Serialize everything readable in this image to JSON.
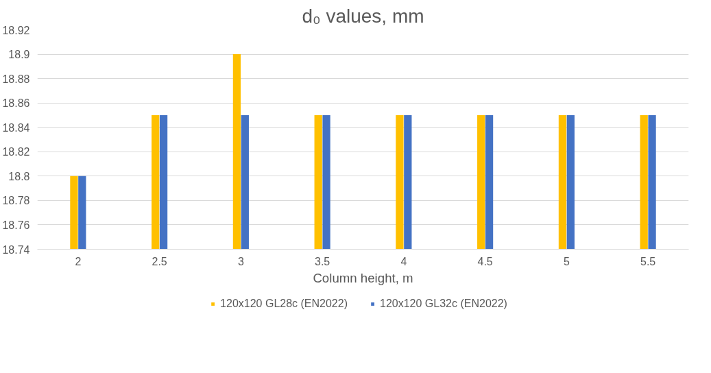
{
  "chart_data": {
    "type": "bar",
    "title": "d₀ values, mm",
    "xlabel": "Column height, m",
    "categories": [
      "2",
      "2.5",
      "3",
      "3.5",
      "4",
      "4.5",
      "5",
      "5.5"
    ],
    "series": [
      {
        "name": "120x120 GL28c (EN2022)",
        "color": "#ffc000",
        "values": [
          18.8,
          18.85,
          18.9,
          18.85,
          18.85,
          18.85,
          18.85,
          18.85
        ]
      },
      {
        "name": "120x120 GL32c (EN2022)",
        "color": "#4472c4",
        "values": [
          18.8,
          18.85,
          18.85,
          18.85,
          18.85,
          18.85,
          18.85,
          18.85
        ]
      }
    ],
    "ylim": [
      18.74,
      18.92
    ],
    "yticks": [
      18.74,
      18.76,
      18.78,
      18.8,
      18.82,
      18.84,
      18.86,
      18.88,
      18.9,
      18.92
    ],
    "grid": "y",
    "legend": "bottom"
  }
}
